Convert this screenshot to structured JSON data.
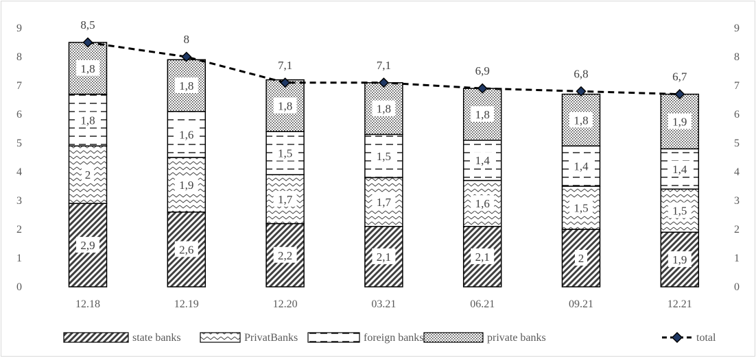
{
  "chart_data": {
    "type": "bar",
    "stacked": true,
    "categories": [
      "12.18",
      "12.19",
      "12.20",
      "03.21",
      "06.21",
      "09.21",
      "12.21"
    ],
    "series": [
      {
        "name": "state banks",
        "values": [
          "2,9",
          "2,6",
          "2,2",
          "2,1",
          "2,1",
          "2",
          "1,9"
        ],
        "numeric": [
          2.9,
          2.6,
          2.2,
          2.1,
          2.1,
          2.0,
          1.9
        ],
        "pattern": "diagonal-hatch"
      },
      {
        "name": "PrivatBanks",
        "values": [
          "2",
          "1,9",
          "1,7",
          "1,7",
          "1,6",
          "1,5",
          "1,5"
        ],
        "numeric": [
          2.0,
          1.9,
          1.7,
          1.7,
          1.6,
          1.5,
          1.5
        ],
        "pattern": "zigzag"
      },
      {
        "name": "foreign banks",
        "values": [
          "1,8",
          "1,6",
          "1,5",
          "1,5",
          "1,4",
          "1,4",
          "1,4"
        ],
        "numeric": [
          1.8,
          1.6,
          1.5,
          1.5,
          1.4,
          1.4,
          1.4
        ],
        "pattern": "dashes"
      },
      {
        "name": "private banks",
        "values": [
          "1,8",
          "1,8",
          "1,8",
          "1,8",
          "1,8",
          "1,8",
          "1,9"
        ],
        "numeric": [
          1.8,
          1.8,
          1.8,
          1.8,
          1.8,
          1.8,
          1.9
        ],
        "pattern": "dots"
      }
    ],
    "total": {
      "name": "total",
      "values": [
        "8,5",
        "8",
        "7,1",
        "7,1",
        "6,9",
        "6,8",
        "6,7"
      ],
      "numeric": [
        8.5,
        8.0,
        7.1,
        7.1,
        6.9,
        6.8,
        6.7
      ],
      "style": "dashed-line-diamond"
    },
    "ylim": [
      0,
      9
    ],
    "yticks": [
      "0",
      "1",
      "2",
      "3",
      "4",
      "5",
      "6",
      "7",
      "8",
      "9"
    ],
    "secondary_axis": true,
    "grid": false,
    "legend_position": "bottom",
    "colors": {
      "bar_edge": "#000000",
      "total_line": "#000000",
      "total_marker": "#1f3864",
      "axis_text": "#595959"
    }
  }
}
